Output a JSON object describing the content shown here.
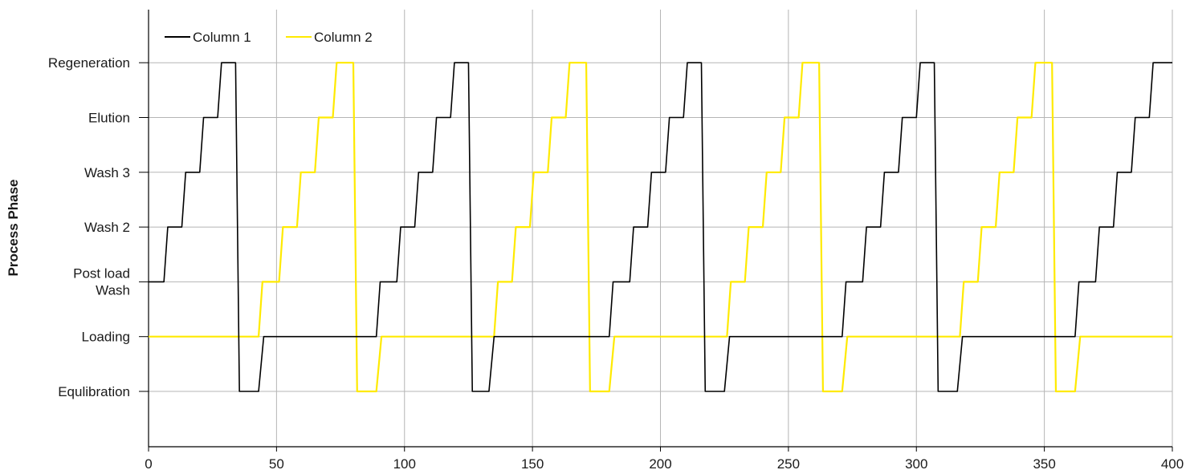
{
  "chart_data": {
    "type": "line",
    "title": "",
    "xlabel": "",
    "ylabel": "Process Phase",
    "xlim": [
      0,
      400
    ],
    "xticks": [
      0,
      50,
      100,
      150,
      200,
      250,
      300,
      350,
      400
    ],
    "y_categories": [
      "Equlibration",
      "Loading",
      "Post load\nWash",
      "Wash 2",
      "Wash 3",
      "Elution",
      "Regeneration"
    ],
    "ylim": [
      -1,
      7.5
    ],
    "grid": true,
    "legend_position": "top-left",
    "series": [
      {
        "name": "Column 1",
        "color": "#000000",
        "steps": [
          [
            0,
            2
          ],
          [
            6,
            2
          ],
          [
            7.5,
            3
          ],
          [
            13,
            3
          ],
          [
            14.5,
            4
          ],
          [
            20,
            4
          ],
          [
            21.5,
            5
          ],
          [
            27,
            5
          ],
          [
            28.5,
            6
          ],
          [
            34,
            6
          ],
          [
            35.5,
            0
          ],
          [
            43,
            0
          ],
          [
            45,
            1
          ],
          [
            89,
            1
          ],
          [
            90.5,
            2
          ],
          [
            97,
            2
          ],
          [
            98.5,
            3
          ],
          [
            104,
            3
          ],
          [
            105.5,
            4
          ],
          [
            111,
            4
          ],
          [
            112.5,
            5
          ],
          [
            118,
            5
          ],
          [
            119.5,
            6
          ],
          [
            125,
            6
          ],
          [
            126.5,
            0
          ],
          [
            133,
            0
          ],
          [
            135,
            1
          ],
          [
            180,
            1
          ],
          [
            181.5,
            2
          ],
          [
            188,
            2
          ],
          [
            189.5,
            3
          ],
          [
            195,
            3
          ],
          [
            196.5,
            4
          ],
          [
            202,
            4
          ],
          [
            203.5,
            5
          ],
          [
            209,
            5
          ],
          [
            210.5,
            6
          ],
          [
            216,
            6
          ],
          [
            217.5,
            0
          ],
          [
            225,
            0
          ],
          [
            227,
            1
          ],
          [
            271,
            1
          ],
          [
            272.5,
            2
          ],
          [
            279,
            2
          ],
          [
            280.5,
            3
          ],
          [
            286,
            3
          ],
          [
            287.5,
            4
          ],
          [
            293,
            4
          ],
          [
            294.5,
            5
          ],
          [
            300,
            5
          ],
          [
            301.5,
            6
          ],
          [
            307,
            6
          ],
          [
            308.5,
            0
          ],
          [
            316,
            0
          ],
          [
            318,
            1
          ],
          [
            362,
            1
          ],
          [
            363.5,
            2
          ],
          [
            370,
            2
          ],
          [
            371.5,
            3
          ],
          [
            377,
            3
          ],
          [
            378.5,
            4
          ],
          [
            384,
            4
          ],
          [
            385.5,
            5
          ],
          [
            391,
            5
          ],
          [
            392.5,
            6
          ],
          [
            400,
            6
          ]
        ]
      },
      {
        "name": "Column 2",
        "color": "#ffea00",
        "steps": [
          [
            0,
            1
          ],
          [
            43,
            1
          ],
          [
            44.5,
            2
          ],
          [
            51,
            2
          ],
          [
            52.5,
            3
          ],
          [
            58,
            3
          ],
          [
            59.5,
            4
          ],
          [
            65,
            4
          ],
          [
            66.5,
            5
          ],
          [
            72,
            5
          ],
          [
            73.5,
            6
          ],
          [
            80,
            6
          ],
          [
            81.5,
            0
          ],
          [
            89,
            0
          ],
          [
            91,
            1
          ],
          [
            135,
            1
          ],
          [
            136.5,
            2
          ],
          [
            142,
            2
          ],
          [
            143.5,
            3
          ],
          [
            149,
            3
          ],
          [
            150.5,
            4
          ],
          [
            156,
            4
          ],
          [
            157.5,
            5
          ],
          [
            163,
            5
          ],
          [
            164.5,
            6
          ],
          [
            171,
            6
          ],
          [
            172.5,
            0
          ],
          [
            180,
            0
          ],
          [
            182,
            1
          ],
          [
            226,
            1
          ],
          [
            227.5,
            2
          ],
          [
            233,
            2
          ],
          [
            234.5,
            3
          ],
          [
            240,
            3
          ],
          [
            241.5,
            4
          ],
          [
            247,
            4
          ],
          [
            248.5,
            5
          ],
          [
            254,
            5
          ],
          [
            255.5,
            6
          ],
          [
            262,
            6
          ],
          [
            263.5,
            0
          ],
          [
            271,
            0
          ],
          [
            273,
            1
          ],
          [
            317,
            1
          ],
          [
            318.5,
            2
          ],
          [
            324,
            2
          ],
          [
            325.5,
            3
          ],
          [
            331,
            3
          ],
          [
            332.5,
            4
          ],
          [
            338,
            4
          ],
          [
            339.5,
            5
          ],
          [
            345,
            5
          ],
          [
            346.5,
            6
          ],
          [
            353,
            6
          ],
          [
            354.5,
            0
          ],
          [
            362,
            0
          ],
          [
            364,
            1
          ],
          [
            400,
            1
          ]
        ]
      }
    ]
  }
}
